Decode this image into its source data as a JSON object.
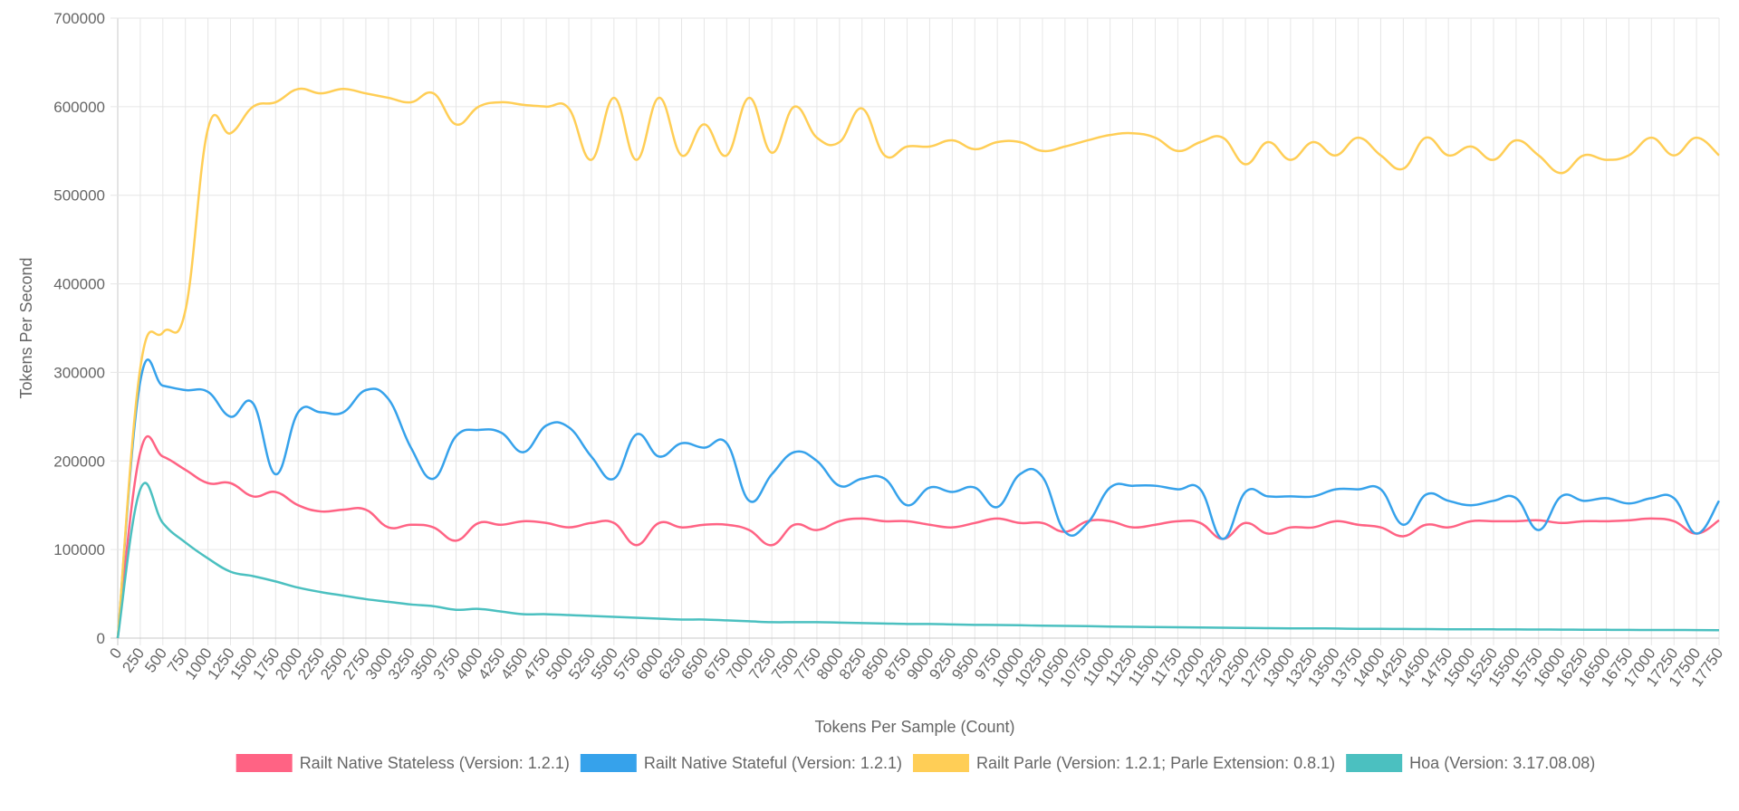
{
  "chart_data": {
    "type": "line",
    "title": "",
    "xlabel": "Tokens Per Sample (Count)",
    "ylabel": "Tokens Per Second",
    "ylim": [
      0,
      700000
    ],
    "yticks": [
      0,
      100000,
      200000,
      300000,
      400000,
      500000,
      600000,
      700000
    ],
    "grid": true,
    "legend_position": "bottom",
    "x": [
      0,
      250,
      500,
      750,
      1000,
      1250,
      1500,
      1750,
      2000,
      2250,
      2500,
      2750,
      3000,
      3250,
      3500,
      3750,
      4000,
      4250,
      4500,
      4750,
      5000,
      5250,
      5500,
      5750,
      6000,
      6250,
      6500,
      6750,
      7000,
      7250,
      7500,
      7750,
      8000,
      8250,
      8500,
      8750,
      9000,
      9250,
      9500,
      9750,
      10000,
      10250,
      10500,
      10750,
      11000,
      11250,
      11500,
      11750,
      12000,
      12250,
      12500,
      12750,
      13000,
      13250,
      13500,
      13750,
      14000,
      14250,
      14500,
      14750,
      15000,
      15250,
      15500,
      15750,
      16000,
      16250,
      16500,
      16750,
      17000,
      17250,
      17500,
      17750
    ],
    "series": [
      {
        "name": "Railt Native Stateless (Version: 1.2.1)",
        "color": "#ff6384",
        "values": [
          0,
          210000,
          205000,
          190000,
          175000,
          175000,
          160000,
          165000,
          150000,
          143000,
          145000,
          145000,
          125000,
          128000,
          125000,
          110000,
          130000,
          128000,
          132000,
          130000,
          125000,
          130000,
          130000,
          105000,
          130000,
          125000,
          128000,
          128000,
          122000,
          105000,
          128000,
          122000,
          132000,
          135000,
          132000,
          132000,
          128000,
          125000,
          130000,
          135000,
          130000,
          130000,
          120000,
          132000,
          132000,
          125000,
          128000,
          132000,
          130000,
          112000,
          130000,
          118000,
          125000,
          125000,
          132000,
          128000,
          125000,
          115000,
          128000,
          125000,
          132000,
          132000,
          132000,
          133000,
          130000,
          132000,
          132000,
          133000,
          135000,
          132000,
          118000,
          133000
        ]
      },
      {
        "name": "Railt Native Stateful (Version: 1.2.1)",
        "color": "#36a2eb",
        "values": [
          0,
          290000,
          285000,
          280000,
          278000,
          250000,
          265000,
          185000,
          255000,
          255000,
          255000,
          280000,
          270000,
          215000,
          180000,
          228000,
          235000,
          232000,
          210000,
          240000,
          238000,
          205000,
          180000,
          230000,
          205000,
          220000,
          215000,
          220000,
          155000,
          185000,
          210000,
          200000,
          172000,
          180000,
          180000,
          150000,
          170000,
          165000,
          170000,
          148000,
          185000,
          182000,
          120000,
          130000,
          170000,
          172000,
          172000,
          168000,
          168000,
          112000,
          165000,
          160000,
          160000,
          160000,
          168000,
          168000,
          168000,
          128000,
          162000,
          155000,
          150000,
          155000,
          158000,
          122000,
          160000,
          155000,
          158000,
          152000,
          158000,
          158000,
          118000,
          155000
        ]
      },
      {
        "name": "Railt Parle (Version: 1.2.1; Parle Extension: 0.8.1)",
        "color": "#ffce56",
        "values": [
          0,
          305000,
          345000,
          370000,
          575000,
          570000,
          600000,
          605000,
          620000,
          615000,
          620000,
          615000,
          610000,
          605000,
          615000,
          580000,
          600000,
          605000,
          602000,
          600000,
          598000,
          540000,
          610000,
          540000,
          610000,
          545000,
          580000,
          545000,
          610000,
          548000,
          600000,
          565000,
          560000,
          598000,
          545000,
          555000,
          555000,
          562000,
          552000,
          560000,
          560000,
          550000,
          555000,
          562000,
          568000,
          570000,
          565000,
          550000,
          560000,
          565000,
          535000,
          560000,
          540000,
          560000,
          545000,
          565000,
          545000,
          530000,
          565000,
          545000,
          555000,
          540000,
          562000,
          545000,
          525000,
          545000,
          540000,
          545000,
          565000,
          545000,
          565000,
          545000
        ]
      },
      {
        "name": "Hoa (Version: 3.17.08.08)",
        "color": "#4bc0c0",
        "values": [
          0,
          168000,
          130000,
          108000,
          90000,
          75000,
          70000,
          64000,
          57000,
          52000,
          48000,
          44000,
          41000,
          38000,
          36000,
          32000,
          33000,
          30000,
          27000,
          27000,
          26000,
          25000,
          24000,
          23000,
          22000,
          21000,
          21000,
          20000,
          19000,
          18000,
          18000,
          18000,
          17500,
          17000,
          16500,
          16000,
          16000,
          15500,
          15000,
          14800,
          14500,
          14000,
          13800,
          13500,
          13000,
          12800,
          12500,
          12200,
          12000,
          11800,
          11500,
          11200,
          11000,
          11000,
          10800,
          10500,
          10500,
          10300,
          10200,
          10000,
          10000,
          9900,
          9800,
          9700,
          9600,
          9500,
          9400,
          9300,
          9200,
          9200,
          9100,
          9000
        ]
      }
    ]
  }
}
